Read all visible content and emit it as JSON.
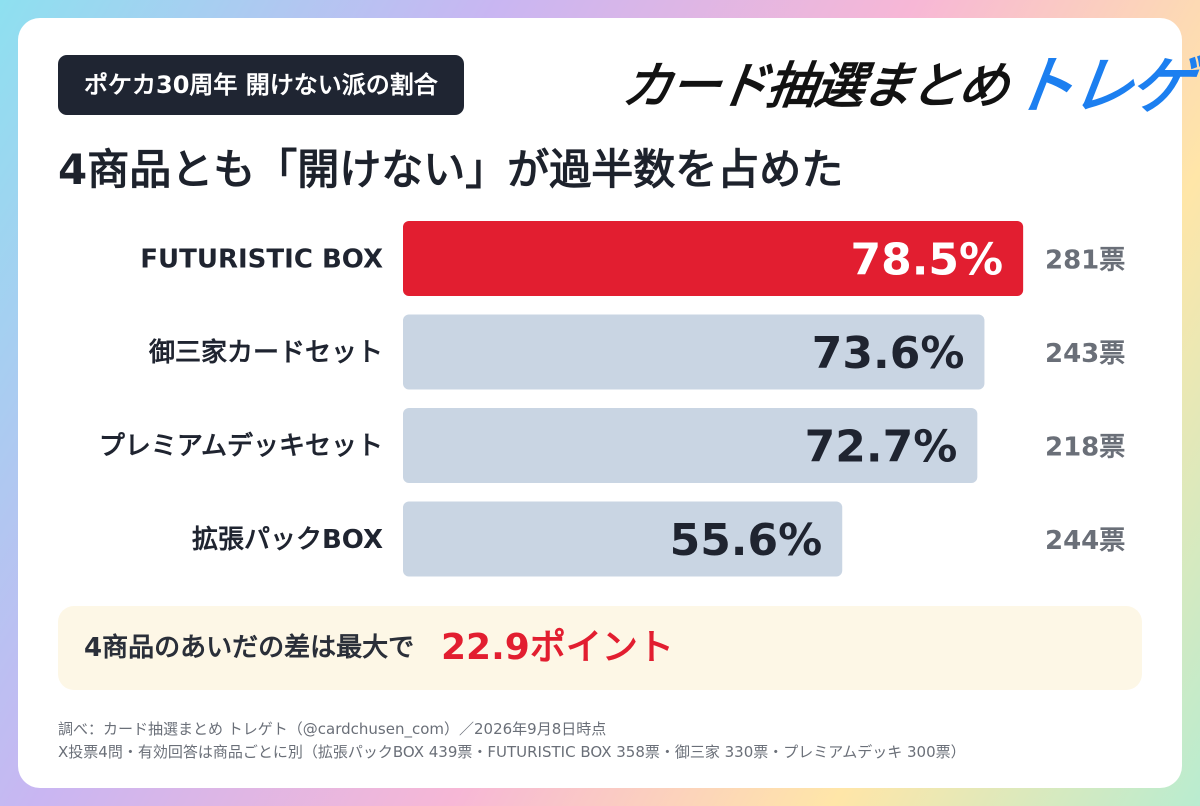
{
  "header": {
    "badge": "ポケカ30周年 開けない派の割合",
    "logo_part1": "カード抽選まとめ",
    "logo_part2": "トレゲト"
  },
  "headline": "4商品とも「開けない」が過半数を占めた",
  "colors": {
    "highlight_bar": "#e21e30",
    "default_bar": "#c9d5e3",
    "accent_text": "#e21e30",
    "logo_blue": "#1c7ff0"
  },
  "chart_data": {
    "type": "bar",
    "orientation": "horizontal",
    "categories": [
      "FUTURISTIC BOX",
      "御三家カードセット",
      "プレミアムデッキセット",
      "拡張パックBOX"
    ],
    "values": [
      78.5,
      73.6,
      72.7,
      55.6
    ],
    "value_labels": [
      "78.5%",
      "73.6%",
      "72.7%",
      "55.6%"
    ],
    "counts": [
      "281票",
      "243票",
      "218票",
      "244票"
    ],
    "highlight_index": 0,
    "xlim": [
      0,
      100
    ],
    "title": "",
    "xlabel": "",
    "ylabel": "",
    "grid": false
  },
  "callout": {
    "lead": "4商品のあいだの差は最大で",
    "highlight": "22.9ポイント"
  },
  "footer": {
    "line1": "調べ：カード抽選まとめ トレゲト（@cardchusen_com）／2026年9月8日時点",
    "line2": "X投票4問・有効回答は商品ごとに別（拡張パックBOX 439票・FUTURISTIC BOX 358票・御三家 330票・プレミアムデッキ 300票）"
  }
}
